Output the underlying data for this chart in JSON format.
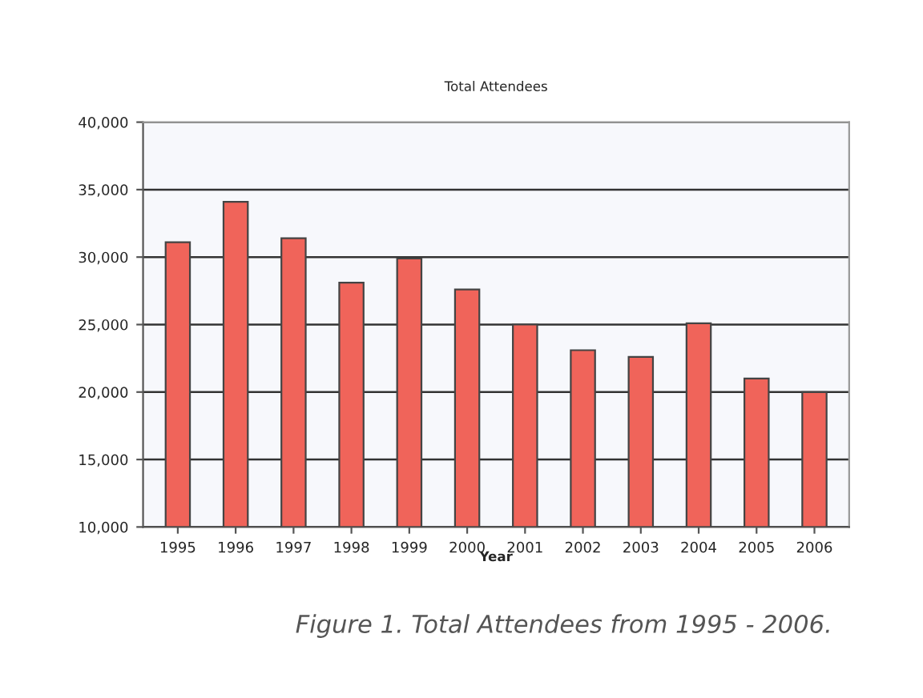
{
  "chart_data": {
    "type": "bar",
    "title": "Total Attendees",
    "xlabel": "Year",
    "categories": [
      "1995",
      "1996",
      "1997",
      "1998",
      "1999",
      "2000",
      "2001",
      "2002",
      "2003",
      "2004",
      "2005",
      "2006"
    ],
    "values": [
      31100,
      34100,
      31400,
      28100,
      29900,
      27600,
      25000,
      23100,
      22600,
      25100,
      21000,
      20000
    ],
    "color": "#f0645a",
    "ylim": [
      10000,
      40000
    ],
    "yticks": [
      {
        "value": 10000,
        "label": "10,000"
      },
      {
        "value": 15000,
        "label": "15,000"
      },
      {
        "value": 20000,
        "label": "20,000"
      },
      {
        "value": 25000,
        "label": "25,000"
      },
      {
        "value": 30000,
        "label": "30,000"
      },
      {
        "value": 35000,
        "label": "35,000"
      },
      {
        "value": 40000,
        "label": "40,000"
      }
    ],
    "grid": "y",
    "legend": false,
    "annotations": [
      "Figure 1. Total Attendees from 1995 - 2006."
    ]
  }
}
